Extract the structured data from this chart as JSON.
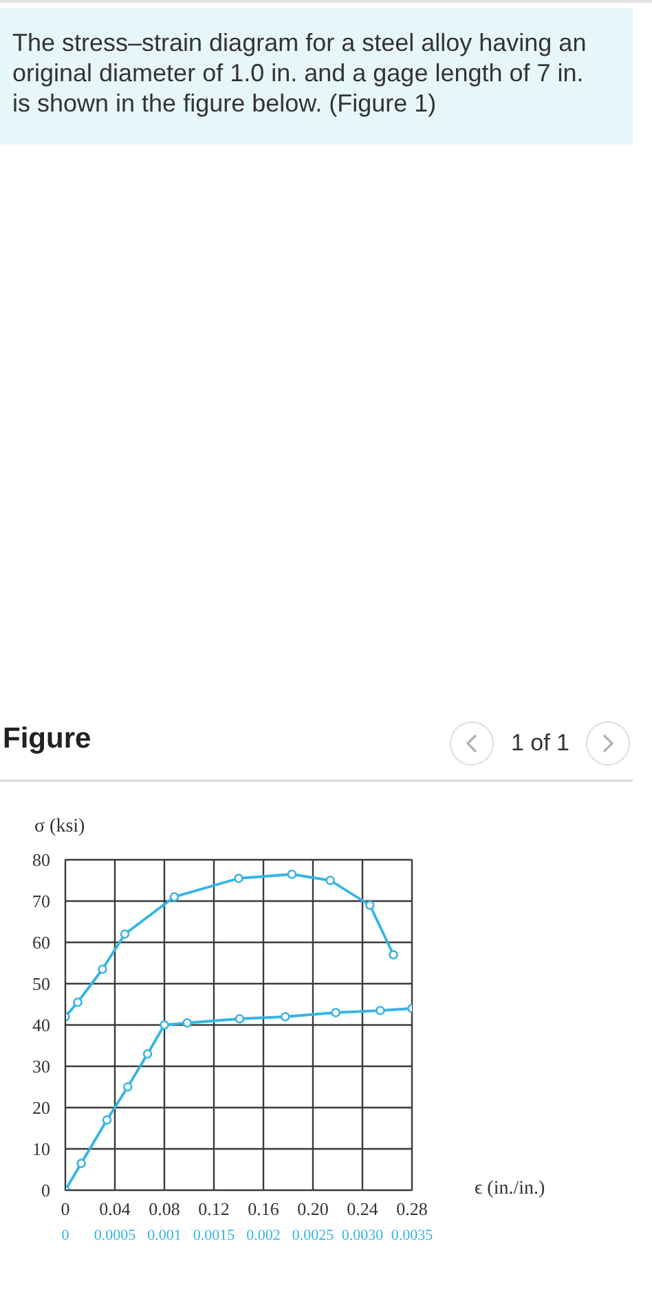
{
  "chart_data": {
    "type": "line",
    "title": "The stress–strain diagram for a steel alloy having an original diameter of 1.0 in. and a gage length of 7 in. is shown in the figure below. (Figure 1)",
    "subtitle": "Figure",
    "annotations": [
      "1 of 1"
    ],
    "xlabel": "ϵ (in./in.)",
    "ylabel": "σ (ksi)",
    "series": [
      {
        "color": "#35b4e4",
        "x": [
          0,
          0.01,
          0.03,
          0.048,
          0.088,
          0.14,
          0.183,
          0.214,
          0.246,
          0.265
        ],
        "values": [
          42,
          45.5,
          53.5,
          62,
          71,
          75.5,
          76.5,
          75,
          69,
          57
        ]
      },
      {
        "color": "#35b4e4",
        "axis": "x2",
        "x": [
          0,
          0.00016,
          0.00042,
          0.00063,
          0.00083,
          0.001,
          0.00123,
          0.00176,
          0.00222,
          0.00273,
          0.00318,
          0.0035
        ],
        "values": [
          0,
          6.5,
          17,
          25,
          33,
          40,
          40.5,
          41.5,
          42,
          43,
          43.5,
          44
        ]
      }
    ],
    "xlim": [
      0,
      0.28
    ],
    "xticks": [
      0,
      0.04,
      0.08,
      0.12,
      0.16,
      {
        "value": 0.2,
        "label": "0.20"
      },
      0.24,
      0.28
    ],
    "x2lim": [
      0,
      0.0035
    ],
    "x2ticks": [
      0,
      0.0005,
      0.001,
      0.0015,
      0.002,
      0.0025,
      {
        "value": 0.003,
        "label": "0.0030"
      },
      0.0035
    ],
    "ylim": [
      0,
      80
    ],
    "yticks": [
      0,
      10,
      20,
      30,
      40,
      50,
      60,
      70,
      80
    ],
    "grid": true,
    "marker": "circle",
    "line_style": "solid"
  }
}
